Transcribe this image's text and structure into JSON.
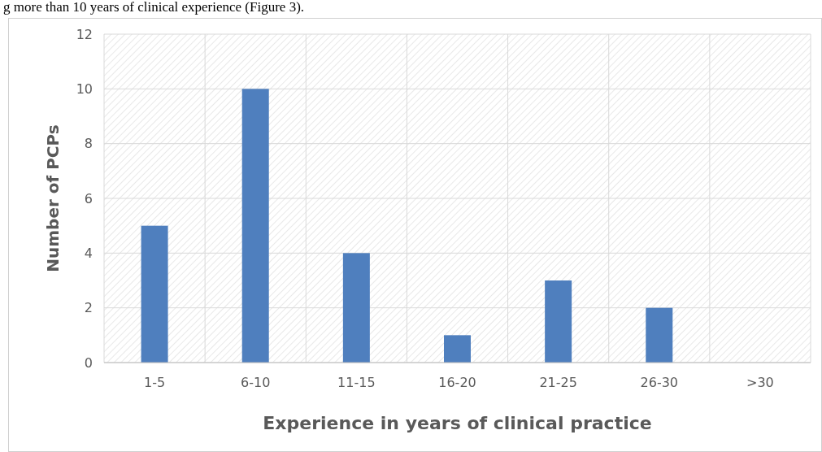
{
  "chart_data": {
    "type": "bar",
    "xlabel": "Experience in years of clinical practice",
    "ylabel": "Number of PCPs",
    "annotations": [
      "g more than 10 years of clinical experience (Figure 3)."
    ],
    "categories": [
      "1-5",
      "6-10",
      "11-15",
      "16-20",
      "21-25",
      "26-30",
      ">30"
    ],
    "values": [
      5,
      10,
      4,
      1,
      3,
      2,
      0
    ],
    "color": "#4f7fbe",
    "ylim": [
      0,
      12
    ],
    "yticks": [
      0,
      2,
      4,
      6,
      8,
      10,
      12
    ],
    "grid": true
  }
}
